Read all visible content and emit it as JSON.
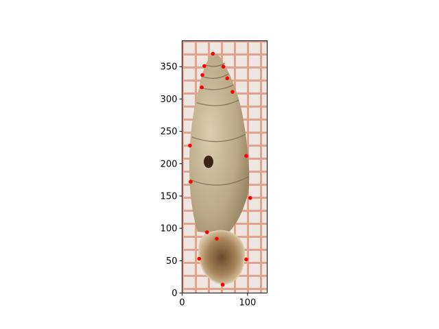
{
  "chart_data": {
    "type": "scatter",
    "background_image": "photograph of an elongated spiral snail shell on orange millimetre grid paper, apex at top and aperture at bottom",
    "xlim": [
      0,
      130
    ],
    "ylim": [
      0,
      390
    ],
    "x_ticks": [
      "0",
      "100"
    ],
    "y_ticks": [
      "0",
      "50",
      "100",
      "150",
      "200",
      "250",
      "300",
      "350"
    ],
    "grid": false,
    "title": "",
    "xlabel": "",
    "ylabel": "",
    "series": [
      {
        "color": "#ff0000",
        "marker": "circle",
        "points": [
          {
            "x": 47,
            "y": 370
          },
          {
            "x": 34,
            "y": 351
          },
          {
            "x": 63,
            "y": 350
          },
          {
            "x": 31,
            "y": 337
          },
          {
            "x": 69,
            "y": 332
          },
          {
            "x": 30,
            "y": 318
          },
          {
            "x": 77,
            "y": 311
          },
          {
            "x": 12,
            "y": 228
          },
          {
            "x": 98,
            "y": 212
          },
          {
            "x": 13,
            "y": 172
          },
          {
            "x": 104,
            "y": 147
          },
          {
            "x": 38,
            "y": 94
          },
          {
            "x": 53,
            "y": 84
          },
          {
            "x": 26,
            "y": 53
          },
          {
            "x": 98,
            "y": 52
          },
          {
            "x": 62,
            "y": 13
          }
        ]
      }
    ]
  }
}
